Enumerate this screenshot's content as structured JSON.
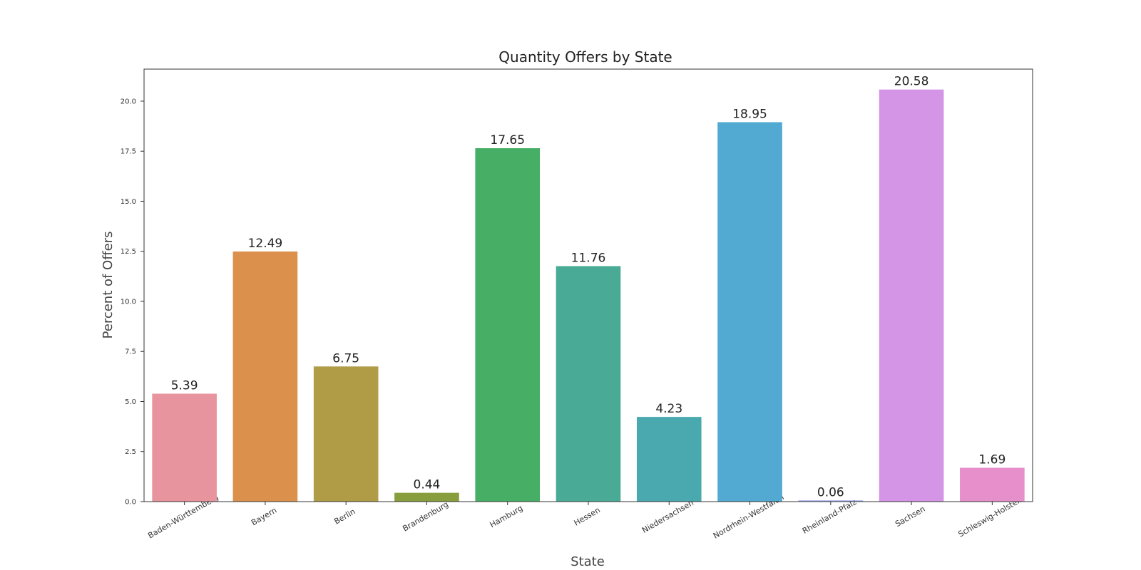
{
  "chart_data": {
    "type": "bar",
    "title": "Quantity Offers by State",
    "xlabel": "State",
    "ylabel": "Percent of Offers",
    "categories": [
      "Baden-Württemberg",
      "Bayern",
      "Berlin",
      "Brandenburg",
      "Hamburg",
      "Hessen",
      "Niedersachsen",
      "Nordrhein-Westfalen",
      "Rheinland-Pfalz",
      "Sachsen",
      "Schleswig-Holstein"
    ],
    "values": [
      5.39,
      12.49,
      6.75,
      0.44,
      17.65,
      11.76,
      4.23,
      18.95,
      0.06,
      20.58,
      1.69
    ],
    "value_labels": [
      "5.39",
      "12.49",
      "6.75",
      "0.44",
      "17.65",
      "11.76",
      "4.23",
      "18.95",
      "0.06",
      "20.58",
      "1.69"
    ],
    "colors": [
      "#e8949f",
      "#db914c",
      "#b09c46",
      "#889e3c",
      "#47ae66",
      "#49ab96",
      "#4aa9af",
      "#52aad3",
      "#9ea3e9",
      "#d595e7",
      "#e68fca"
    ],
    "yticks": [
      0.0,
      2.5,
      5.0,
      7.5,
      10.0,
      12.5,
      15.0,
      17.5,
      20.0
    ],
    "ytick_labels": [
      "0.0",
      "2.5",
      "5.0",
      "7.5",
      "10.0",
      "12.5",
      "15.0",
      "17.5",
      "20.0"
    ],
    "ylim": [
      0,
      21.6
    ],
    "grid": false,
    "legend": "none"
  }
}
